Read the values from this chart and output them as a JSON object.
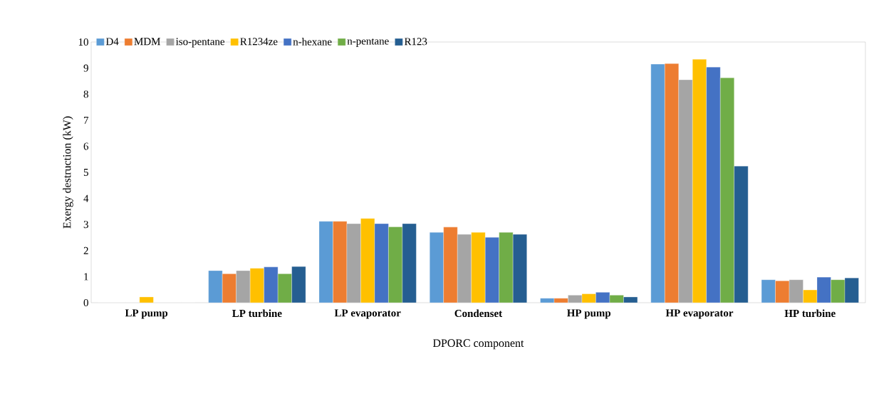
{
  "chart_data": {
    "type": "bar",
    "xlabel": "DPORC  component",
    "ylabel": "Exergy destruction (kW)",
    "categories": [
      "LP pump",
      "LP turbine",
      "LP evaporator",
      "Condenset",
      "HP pump",
      "HP evaporator",
      "HP turbine"
    ],
    "series": [
      {
        "name": "D4",
        "color": "#5b9bd5",
        "values": [
          0,
          1.23,
          3.12,
          2.7,
          0.17,
          9.15,
          0.88
        ]
      },
      {
        "name": "MDM",
        "color": "#ed7d31",
        "values": [
          0,
          1.11,
          3.12,
          2.9,
          0.17,
          9.17,
          0.84
        ]
      },
      {
        "name": "iso-pentane",
        "color": "#a5a5a5",
        "values": [
          0,
          1.23,
          3.03,
          2.62,
          0.29,
          8.55,
          0.88
        ]
      },
      {
        "name": "R1234ze",
        "color": "#ffc000",
        "values": [
          0.22,
          1.32,
          3.23,
          2.7,
          0.34,
          9.34,
          0.49
        ]
      },
      {
        "name": "n-hexane",
        "color": "#4472c4",
        "values": [
          0,
          1.37,
          3.03,
          2.51,
          0.4,
          9.04,
          0.98
        ]
      },
      {
        "name": "n-pentane",
        "color": "#70ad47",
        "values": [
          0,
          1.11,
          2.91,
          2.7,
          0.29,
          8.63,
          0.88
        ]
      },
      {
        "name": "R123",
        "color": "#255e91",
        "values": [
          0,
          1.39,
          3.03,
          2.62,
          0.22,
          5.24,
          0.95
        ]
      }
    ],
    "ylim": [
      0,
      10
    ],
    "yticks": [
      0,
      1,
      2,
      3,
      4,
      5,
      6,
      7,
      8,
      9,
      10
    ],
    "grid": false,
    "legend": "top"
  }
}
